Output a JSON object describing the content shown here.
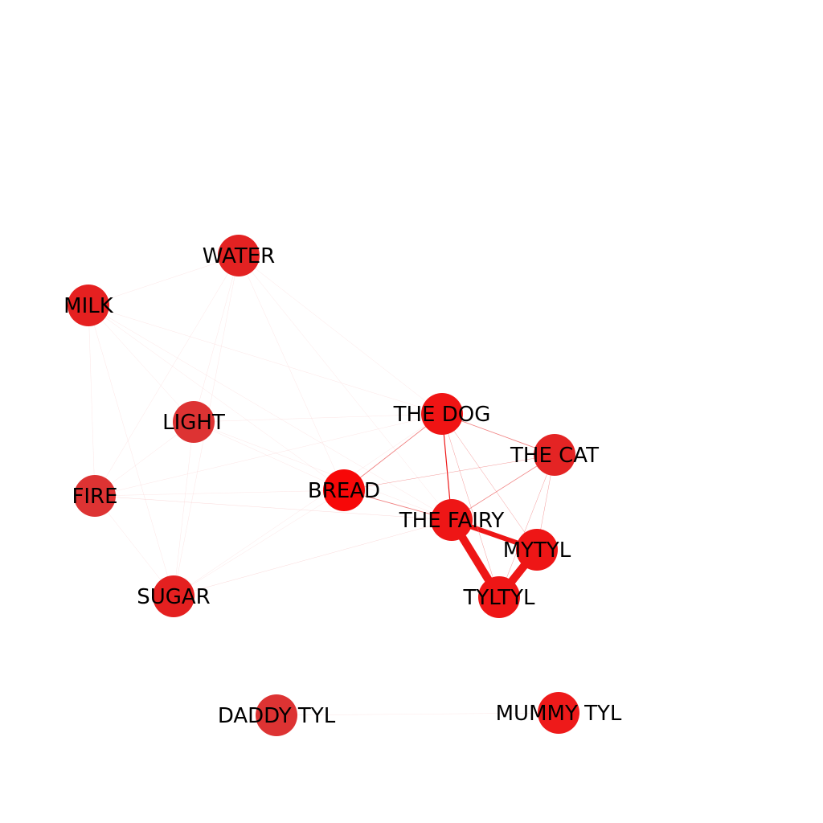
{
  "graph": {
    "nodes": [
      {
        "id": "water",
        "label": "WATER",
        "color": "#e32222"
      },
      {
        "id": "milk",
        "label": "MILK",
        "color": "#e52020"
      },
      {
        "id": "light",
        "label": "LIGHT",
        "color": "#dd3333"
      },
      {
        "id": "fire",
        "label": "FIRE",
        "color": "#dd3333"
      },
      {
        "id": "sugar",
        "label": "SUGAR",
        "color": "#e42020"
      },
      {
        "id": "bread",
        "label": "BREAD",
        "color": "#f70808"
      },
      {
        "id": "the_dog",
        "label": "THE DOG",
        "color": "#f01414"
      },
      {
        "id": "the_cat",
        "label": "THE CAT",
        "color": "#e42424"
      },
      {
        "id": "the_fairy",
        "label": "THE FAIRY",
        "color": "#ee1616"
      },
      {
        "id": "mytyl",
        "label": "MYTYL",
        "color": "#ee1616"
      },
      {
        "id": "tyltyl",
        "label": "TYLTYL",
        "color": "#ee1616"
      },
      {
        "id": "daddy_tyl",
        "label": "DADDY TYL",
        "color": "#dd3333"
      },
      {
        "id": "mummy_tyl",
        "label": "MUMMY TYL",
        "color": "#ee1a1a"
      }
    ],
    "edges": [
      {
        "source": "the_fairy",
        "target": "tyltyl",
        "weight": 10
      },
      {
        "source": "tyltyl",
        "target": "mytyl",
        "weight": 10
      },
      {
        "source": "the_fairy",
        "target": "mytyl",
        "weight": 6
      },
      {
        "source": "the_dog",
        "target": "the_fairy",
        "weight": 1.2
      },
      {
        "source": "the_dog",
        "target": "bread",
        "weight": 0.9
      },
      {
        "source": "the_dog",
        "target": "the_cat",
        "weight": 0.9
      },
      {
        "source": "bread",
        "target": "the_fairy",
        "weight": 0.9
      },
      {
        "source": "the_cat",
        "target": "the_fairy",
        "weight": 0.8
      },
      {
        "source": "the_dog",
        "target": "mytyl",
        "weight": 0.4
      },
      {
        "source": "the_dog",
        "target": "tyltyl",
        "weight": 0.4
      },
      {
        "source": "the_cat",
        "target": "mytyl",
        "weight": 0.4
      },
      {
        "source": "the_cat",
        "target": "tyltyl",
        "weight": 0.4
      },
      {
        "source": "the_cat",
        "target": "bread",
        "weight": 0.4
      },
      {
        "source": "the_fairy",
        "target": "sugar",
        "weight": 0.3
      },
      {
        "source": "the_fairy",
        "target": "fire",
        "weight": 0.3
      },
      {
        "source": "water",
        "target": "milk",
        "weight": 0.2
      },
      {
        "source": "water",
        "target": "light",
        "weight": 0.2
      },
      {
        "source": "water",
        "target": "fire",
        "weight": 0.2
      },
      {
        "source": "water",
        "target": "sugar",
        "weight": 0.2
      },
      {
        "source": "water",
        "target": "bread",
        "weight": 0.2
      },
      {
        "source": "water",
        "target": "the_dog",
        "weight": 0.2
      },
      {
        "source": "water",
        "target": "the_fairy",
        "weight": 0.2
      },
      {
        "source": "milk",
        "target": "light",
        "weight": 0.2
      },
      {
        "source": "milk",
        "target": "fire",
        "weight": 0.2
      },
      {
        "source": "milk",
        "target": "sugar",
        "weight": 0.2
      },
      {
        "source": "milk",
        "target": "bread",
        "weight": 0.2
      },
      {
        "source": "milk",
        "target": "the_dog",
        "weight": 0.2
      },
      {
        "source": "milk",
        "target": "the_fairy",
        "weight": 0.2
      },
      {
        "source": "light",
        "target": "fire",
        "weight": 0.2
      },
      {
        "source": "light",
        "target": "sugar",
        "weight": 0.2
      },
      {
        "source": "light",
        "target": "bread",
        "weight": 0.2
      },
      {
        "source": "light",
        "target": "the_dog",
        "weight": 0.2
      },
      {
        "source": "light",
        "target": "the_fairy",
        "weight": 0.2
      },
      {
        "source": "fire",
        "target": "sugar",
        "weight": 0.2
      },
      {
        "source": "fire",
        "target": "bread",
        "weight": 0.2
      },
      {
        "source": "fire",
        "target": "the_dog",
        "weight": 0.2
      },
      {
        "source": "sugar",
        "target": "bread",
        "weight": 0.2
      },
      {
        "source": "sugar",
        "target": "the_dog",
        "weight": 0.2
      },
      {
        "source": "daddy_tyl",
        "target": "mummy_tyl",
        "weight": 0.2
      }
    ]
  }
}
